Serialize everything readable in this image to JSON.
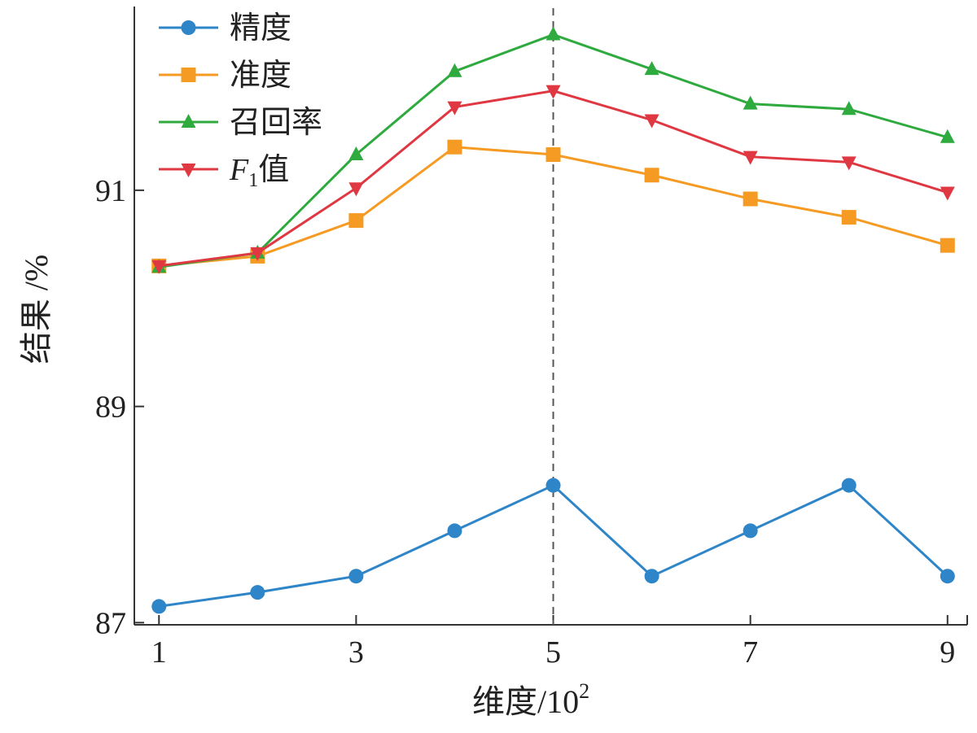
{
  "chart_data": {
    "type": "line",
    "title": "",
    "xlabel": "维度/10",
    "xlabel_superscript": "2",
    "ylabel": "结果 /%",
    "x": [
      1,
      2,
      3,
      4,
      5,
      6,
      7,
      8,
      9
    ],
    "x_ticks": [
      "1",
      "3",
      "5",
      "7",
      "9"
    ],
    "y_ticks": [
      "87",
      "89",
      "91"
    ],
    "xlim": [
      0.75,
      9.2
    ],
    "ylim": [
      86.98,
      92.7
    ],
    "grid": false,
    "legend_position": "top-left",
    "reference_line": {
      "x": 5,
      "style": "dashed"
    },
    "series": [
      {
        "name": "精度",
        "name_parts": [
          "精度"
        ],
        "marker": "circle",
        "color": "#2e86c9",
        "values": [
          87.15,
          87.28,
          87.43,
          87.85,
          88.27,
          87.43,
          87.85,
          88.27,
          87.43
        ]
      },
      {
        "name": "准度",
        "name_parts": [
          "准度"
        ],
        "marker": "square",
        "color": "#f59b23",
        "values": [
          90.3,
          90.39,
          90.72,
          91.4,
          91.33,
          91.14,
          90.92,
          90.75,
          90.49
        ]
      },
      {
        "name": "召回率",
        "name_parts": [
          "召回率"
        ],
        "marker": "triangle-up",
        "color": "#2faa3f",
        "values": [
          90.29,
          90.42,
          91.33,
          92.1,
          92.44,
          92.12,
          91.8,
          91.75,
          91.49
        ]
      },
      {
        "name": "F1值",
        "name_parts": [
          "F",
          "1",
          "值"
        ],
        "marker": "triangle-down",
        "color": "#e03843",
        "values": [
          90.3,
          90.42,
          91.02,
          91.77,
          91.92,
          91.65,
          91.31,
          91.26,
          90.98
        ]
      }
    ]
  }
}
